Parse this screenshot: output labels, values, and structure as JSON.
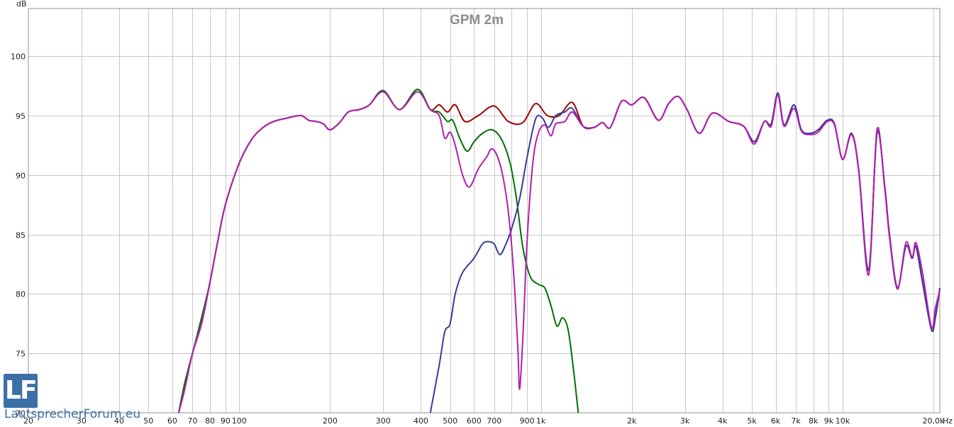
{
  "chart_data": {
    "type": "line",
    "title": "GPM 2m",
    "ylabel": "dB",
    "xlabel": "Hz",
    "x_scale": "log",
    "xlim": [
      20,
      21000
    ],
    "ylim": [
      70,
      104
    ],
    "grid": true,
    "x_ticks": [
      {
        "v": 20,
        "label": "20"
      },
      {
        "v": 30,
        "label": "30"
      },
      {
        "v": 40,
        "label": "40"
      },
      {
        "v": 50,
        "label": "50"
      },
      {
        "v": 60,
        "label": "60"
      },
      {
        "v": 70,
        "label": "70"
      },
      {
        "v": 80,
        "label": "80"
      },
      {
        "v": 90,
        "label": "90"
      },
      {
        "v": 100,
        "label": "100"
      },
      {
        "v": 200,
        "label": "200"
      },
      {
        "v": 300,
        "label": "300"
      },
      {
        "v": 400,
        "label": "400"
      },
      {
        "v": 500,
        "label": "500"
      },
      {
        "v": 600,
        "label": "600"
      },
      {
        "v": 700,
        "label": "700"
      },
      {
        "v": 900,
        "label": "900"
      },
      {
        "v": 1000,
        "label": "1k"
      },
      {
        "v": 2000,
        "label": "2k"
      },
      {
        "v": 3000,
        "label": "3k"
      },
      {
        "v": 4000,
        "label": "4k"
      },
      {
        "v": 5000,
        "label": "5k"
      },
      {
        "v": 6000,
        "label": "6k"
      },
      {
        "v": 7000,
        "label": "7k"
      },
      {
        "v": 8000,
        "label": "8k"
      },
      {
        "v": 9000,
        "label": "9k"
      },
      {
        "v": 10000,
        "label": "10k"
      },
      {
        "v": 20000,
        "label": "20,0k"
      }
    ],
    "x_minor": [
      800
    ],
    "y_ticks": [
      70,
      75,
      80,
      85,
      90,
      95,
      100
    ],
    "series": [
      {
        "color": "#a00000",
        "points": [
          [
            63,
            70
          ],
          [
            66,
            72.5
          ],
          [
            70,
            75
          ],
          [
            75,
            77.5
          ],
          [
            80,
            81
          ],
          [
            85,
            84.5
          ],
          [
            90,
            87.5
          ],
          [
            100,
            91
          ],
          [
            110,
            93
          ],
          [
            120,
            94
          ],
          [
            130,
            94.5
          ],
          [
            145,
            94.8
          ],
          [
            160,
            95
          ],
          [
            170,
            94.6
          ],
          [
            180,
            94.5
          ],
          [
            190,
            94.3
          ],
          [
            200,
            93.8
          ],
          [
            215,
            94.4
          ],
          [
            230,
            95.3
          ],
          [
            250,
            95.5
          ],
          [
            270,
            95.9
          ],
          [
            300,
            97.1
          ],
          [
            340,
            95.5
          ],
          [
            390,
            97.2
          ],
          [
            430,
            95.5
          ],
          [
            460,
            95.9
          ],
          [
            490,
            95.3
          ],
          [
            520,
            95.9
          ],
          [
            560,
            94.5
          ],
          [
            620,
            95
          ],
          [
            700,
            95.8
          ],
          [
            780,
            94.5
          ],
          [
            870,
            94.4
          ],
          [
            960,
            96
          ],
          [
            1050,
            95
          ],
          [
            1150,
            95
          ],
          [
            1270,
            96.1
          ],
          [
            1380,
            94.1
          ],
          [
            1500,
            94
          ],
          [
            1600,
            94.4
          ],
          [
            1700,
            94
          ],
          [
            1850,
            96.2
          ],
          [
            2000,
            95.9
          ],
          [
            2200,
            96.5
          ],
          [
            2450,
            94.6
          ],
          [
            2650,
            96
          ],
          [
            2850,
            96.6
          ],
          [
            3050,
            95.5
          ],
          [
            3350,
            93.5
          ],
          [
            3700,
            95.2
          ],
          [
            4200,
            94.5
          ],
          [
            4700,
            94.1
          ],
          [
            5100,
            92.8
          ],
          [
            5500,
            94.5
          ],
          [
            5800,
            94.3
          ],
          [
            6100,
            96.9
          ],
          [
            6400,
            94.2
          ],
          [
            6900,
            95.9
          ],
          [
            7300,
            93.8
          ],
          [
            7800,
            93.5
          ],
          [
            8300,
            93.8
          ],
          [
            8900,
            94.6
          ],
          [
            9400,
            94.3
          ],
          [
            10000,
            91.3
          ],
          [
            10700,
            93.5
          ],
          [
            11300,
            90.5
          ],
          [
            12200,
            82
          ],
          [
            13000,
            93.5
          ],
          [
            13800,
            89
          ],
          [
            14300,
            85
          ],
          [
            15200,
            80.5
          ],
          [
            16200,
            84
          ],
          [
            17000,
            83
          ],
          [
            17500,
            84
          ],
          [
            18400,
            81
          ],
          [
            19700,
            77
          ],
          [
            20300,
            78
          ],
          [
            21000,
            80.5
          ]
        ]
      },
      {
        "color": "#007000",
        "points": [
          [
            63,
            70
          ],
          [
            66,
            72.5
          ],
          [
            70,
            75
          ],
          [
            75,
            78
          ],
          [
            80,
            81
          ],
          [
            85,
            84.5
          ],
          [
            90,
            87.5
          ],
          [
            100,
            91
          ],
          [
            110,
            93
          ],
          [
            120,
            94
          ],
          [
            130,
            94.5
          ],
          [
            145,
            94.8
          ],
          [
            160,
            95
          ],
          [
            170,
            94.6
          ],
          [
            180,
            94.5
          ],
          [
            190,
            94.3
          ],
          [
            200,
            93.8
          ],
          [
            215,
            94.4
          ],
          [
            230,
            95.3
          ],
          [
            250,
            95.5
          ],
          [
            270,
            95.9
          ],
          [
            300,
            97.1
          ],
          [
            340,
            95.5
          ],
          [
            390,
            97.2
          ],
          [
            430,
            95.5
          ],
          [
            460,
            95.3
          ],
          [
            490,
            94.5
          ],
          [
            510,
            94.6
          ],
          [
            540,
            93
          ],
          [
            570,
            92
          ],
          [
            600,
            92.8
          ],
          [
            640,
            93.5
          ],
          [
            690,
            93.8
          ],
          [
            740,
            93
          ],
          [
            790,
            91
          ],
          [
            830,
            88
          ],
          [
            870,
            84
          ],
          [
            920,
            81.5
          ],
          [
            980,
            80.8
          ],
          [
            1030,
            80.5
          ],
          [
            1080,
            79
          ],
          [
            1130,
            77.3
          ],
          [
            1180,
            78
          ],
          [
            1230,
            77
          ],
          [
            1280,
            73.8
          ],
          [
            1330,
            70
          ]
        ]
      },
      {
        "color": "#3a3a9a",
        "points": [
          [
            430,
            70
          ],
          [
            460,
            74
          ],
          [
            480,
            76.8
          ],
          [
            500,
            77.5
          ],
          [
            520,
            80
          ],
          [
            550,
            81.8
          ],
          [
            600,
            83
          ],
          [
            640,
            84.2
          ],
          [
            670,
            84.4
          ],
          [
            700,
            84.2
          ],
          [
            730,
            83.3
          ],
          [
            760,
            84
          ],
          [
            800,
            85.5
          ],
          [
            850,
            88
          ],
          [
            900,
            91.5
          ],
          [
            960,
            94.7
          ],
          [
            1010,
            94.8
          ],
          [
            1060,
            94
          ],
          [
            1120,
            95
          ],
          [
            1200,
            95.3
          ],
          [
            1270,
            95.6
          ],
          [
            1380,
            94.1
          ],
          [
            1500,
            94
          ],
          [
            1600,
            94.4
          ],
          [
            1700,
            94
          ],
          [
            1850,
            96.2
          ],
          [
            2000,
            95.9
          ],
          [
            2200,
            96.5
          ],
          [
            2450,
            94.6
          ],
          [
            2650,
            96
          ],
          [
            2850,
            96.6
          ],
          [
            3050,
            95.5
          ],
          [
            3350,
            93.5
          ],
          [
            3700,
            95.2
          ],
          [
            4200,
            94.5
          ],
          [
            4700,
            94.1
          ],
          [
            5100,
            92.8
          ],
          [
            5500,
            94.5
          ],
          [
            5800,
            94.3
          ],
          [
            6100,
            96.9
          ],
          [
            6400,
            94.2
          ],
          [
            6900,
            95.9
          ],
          [
            7300,
            93.8
          ],
          [
            7800,
            93.5
          ],
          [
            8300,
            93.8
          ],
          [
            8900,
            94.6
          ],
          [
            9400,
            94.3
          ],
          [
            10000,
            91.3
          ],
          [
            10700,
            93.5
          ],
          [
            11300,
            90.5
          ],
          [
            12200,
            82
          ],
          [
            13000,
            93.5
          ],
          [
            13800,
            89
          ],
          [
            14300,
            85
          ],
          [
            15200,
            80.5
          ],
          [
            16200,
            84
          ],
          [
            17000,
            83
          ],
          [
            17500,
            84
          ],
          [
            18400,
            81
          ],
          [
            19700,
            77
          ],
          [
            20300,
            78
          ],
          [
            21000,
            80.5
          ]
        ]
      },
      {
        "color": "#b020b0",
        "points": [
          [
            63,
            70
          ],
          [
            66,
            72
          ],
          [
            70,
            75
          ],
          [
            75,
            77.5
          ],
          [
            80,
            81
          ],
          [
            85,
            84.5
          ],
          [
            90,
            87.5
          ],
          [
            100,
            91
          ],
          [
            110,
            93
          ],
          [
            120,
            94
          ],
          [
            130,
            94.5
          ],
          [
            145,
            94.8
          ],
          [
            160,
            95
          ],
          [
            170,
            94.6
          ],
          [
            180,
            94.5
          ],
          [
            190,
            94.3
          ],
          [
            200,
            93.8
          ],
          [
            215,
            94.4
          ],
          [
            230,
            95.3
          ],
          [
            250,
            95.5
          ],
          [
            270,
            95.9
          ],
          [
            300,
            97
          ],
          [
            340,
            95.5
          ],
          [
            390,
            97
          ],
          [
            430,
            95.5
          ],
          [
            460,
            95
          ],
          [
            480,
            93.1
          ],
          [
            500,
            93.6
          ],
          [
            520,
            92.5
          ],
          [
            550,
            90
          ],
          [
            580,
            89
          ],
          [
            620,
            90.5
          ],
          [
            660,
            91.5
          ],
          [
            690,
            92.2
          ],
          [
            730,
            91
          ],
          [
            770,
            88
          ],
          [
            800,
            84
          ],
          [
            820,
            80
          ],
          [
            840,
            75
          ],
          [
            850,
            72
          ],
          [
            870,
            76
          ],
          [
            900,
            84.5
          ],
          [
            940,
            91
          ],
          [
            980,
            93.5
          ],
          [
            1030,
            94.2
          ],
          [
            1080,
            93.3
          ],
          [
            1120,
            94.3
          ],
          [
            1200,
            94.5
          ],
          [
            1270,
            95.3
          ],
          [
            1380,
            94.1
          ],
          [
            1500,
            94
          ],
          [
            1600,
            94.4
          ],
          [
            1700,
            94
          ],
          [
            1850,
            96.2
          ],
          [
            2000,
            95.9
          ],
          [
            2200,
            96.5
          ],
          [
            2450,
            94.6
          ],
          [
            2650,
            96
          ],
          [
            2850,
            96.6
          ],
          [
            3050,
            95.5
          ],
          [
            3350,
            93.5
          ],
          [
            3700,
            95.2
          ],
          [
            4200,
            94.5
          ],
          [
            4700,
            94.1
          ],
          [
            5100,
            92.6
          ],
          [
            5500,
            94.5
          ],
          [
            5800,
            94.1
          ],
          [
            6100,
            96.7
          ],
          [
            6400,
            94.1
          ],
          [
            6900,
            95.6
          ],
          [
            7300,
            93.7
          ],
          [
            7800,
            93.4
          ],
          [
            8300,
            93.6
          ],
          [
            8900,
            94.5
          ],
          [
            9400,
            94.2
          ],
          [
            10000,
            91.3
          ],
          [
            10700,
            93.4
          ],
          [
            11300,
            90.4
          ],
          [
            12200,
            81.6
          ],
          [
            13000,
            93.8
          ],
          [
            13800,
            88.8
          ],
          [
            14300,
            84.8
          ],
          [
            15200,
            80.4
          ],
          [
            16200,
            84.3
          ],
          [
            17000,
            83.1
          ],
          [
            17500,
            84.3
          ],
          [
            18400,
            81.8
          ],
          [
            19700,
            77.2
          ],
          [
            20300,
            78.8
          ],
          [
            21000,
            80.3
          ]
        ]
      }
    ]
  },
  "watermark": {
    "letters": "LF",
    "text": "LautsprecherForum.eu"
  }
}
